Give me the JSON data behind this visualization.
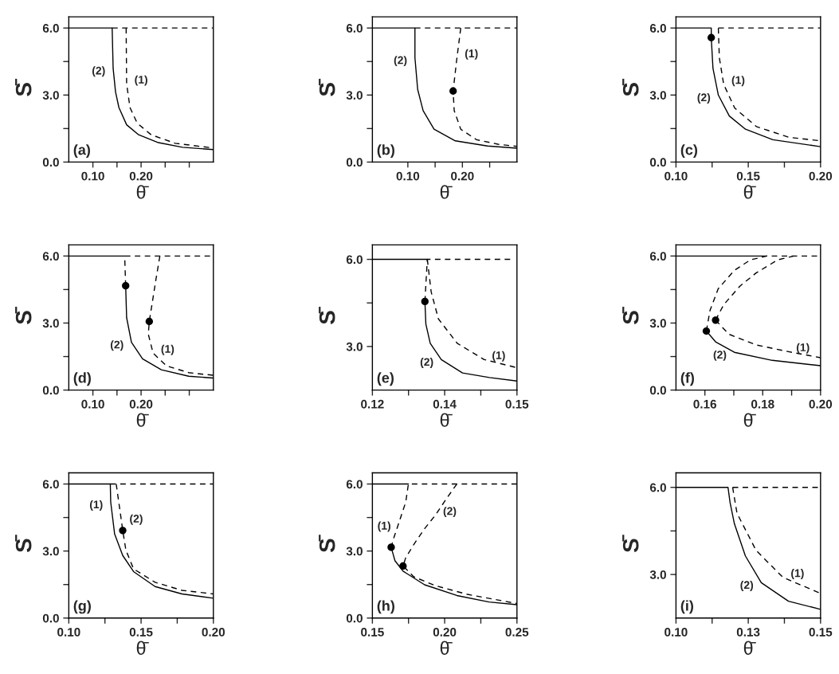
{
  "chart_data": [
    {
      "type": "line",
      "xlabel": "θ̄",
      "ylabel": "S̄",
      "xlim": [
        0.05,
        0.35
      ],
      "ylim": [
        0,
        6.5
      ],
      "xticks": [
        {
          "value": 0.1,
          "label": "0.10"
        },
        {
          "value": 0.15,
          "label": null
        },
        {
          "value": 0.2,
          "label": "0.20"
        },
        {
          "value": 0.25,
          "label": null
        },
        {
          "value": 0.3,
          "label": null
        }
      ],
      "yticks": [
        {
          "value": 0,
          "label": "0.0"
        },
        {
          "value": 1.5,
          "label": null
        },
        {
          "value": 3,
          "label": "3.0"
        },
        {
          "value": 4.5,
          "label": null
        },
        {
          "value": 6,
          "label": "6.0"
        }
      ],
      "series": [
        {
          "color": "#000000",
          "line_style": "solid",
          "x": [
            0.05,
            0.14,
            0.142,
            0.147,
            0.154,
            0.17,
            0.195,
            0.236,
            0.286,
            0.35
          ],
          "values": [
            6,
            6,
            4.2,
            3.14,
            2.44,
            1.67,
            1.22,
            0.87,
            0.66,
            0.56
          ]
        },
        {
          "color": "#000000",
          "line_style": "dashed",
          "x": [
            0.169,
            0.17,
            0.177,
            0.192,
            0.221,
            0.271,
            0.35
          ],
          "values": [
            6,
            3.5,
            2.44,
            1.74,
            1.22,
            0.84,
            0.63
          ]
        },
        {
          "color": "#000000",
          "line_style": "dashed",
          "x": [
            0.14,
            0.35
          ],
          "values": [
            6,
            6
          ]
        }
      ],
      "annotations": [
        "(a)",
        {
          "text": "(2)",
          "x": 0.142,
          "y": 4.2
        },
        {
          "text": "(1)",
          "x": 0.17,
          "y": 3.5
        }
      ]
    },
    {
      "type": "line",
      "xlabel": "θ̄",
      "ylabel": "S̄",
      "xlim": [
        0.035,
        0.3
      ],
      "ylim": [
        0,
        6.5
      ],
      "xticks": [
        {
          "value": 0.1,
          "label": "0.10"
        },
        {
          "value": 0.15,
          "label": null
        },
        {
          "value": 0.2,
          "label": "0.20"
        },
        {
          "value": 0.25,
          "label": null
        }
      ],
      "yticks": [
        {
          "value": 0,
          "label": "0.0"
        },
        {
          "value": 1.5,
          "label": null
        },
        {
          "value": 3,
          "label": "3.0"
        },
        {
          "value": 4.5,
          "label": null
        },
        {
          "value": 6,
          "label": "6.0"
        }
      ],
      "series": [
        {
          "color": "#000000",
          "line_style": "solid",
          "x": [
            0.035,
            0.113,
            0.113,
            0.118,
            0.128,
            0.148,
            0.187,
            0.246,
            0.3
          ],
          "values": [
            6,
            6,
            4.67,
            3.25,
            2.3,
            1.47,
            0.95,
            0.72,
            0.62
          ]
        },
        {
          "color": "#000000",
          "line_style": "dashed",
          "x": [
            0.197,
            0.19,
            0.183,
            0.185,
            0.197,
            0.226,
            0.265,
            0.3
          ],
          "values": [
            6,
            4.67,
            3.18,
            2.3,
            1.47,
            1.0,
            0.8,
            0.7
          ]
        },
        {
          "color": "#000000",
          "line_style": "dashed",
          "x": [
            0.113,
            0.3
          ],
          "values": [
            6,
            6
          ]
        },
        {
          "type": "scatter",
          "marker": "circle",
          "color": "#000000",
          "x": [
            0.183
          ],
          "values": [
            3.18
          ]
        }
      ],
      "annotations": [
        "(b)",
        {
          "text": "(2)",
          "x": 0.113,
          "y": 4.67
        },
        {
          "text": "(1)",
          "x": 0.19,
          "y": 4.67
        }
      ]
    },
    {
      "type": "line",
      "xlabel": "θ̄",
      "ylabel": "S̄",
      "xlim": [
        0.1,
        0.2
      ],
      "ylim": [
        0,
        6.5
      ],
      "xticks": [
        {
          "value": 0.1,
          "label": "0.10"
        },
        {
          "value": 0.125,
          "label": null
        },
        {
          "value": 0.15,
          "label": "0.15"
        },
        {
          "value": 0.175,
          "label": null
        },
        {
          "value": 0.2,
          "label": "0.20"
        }
      ],
      "yticks": [
        {
          "value": 0,
          "label": "0.0"
        },
        {
          "value": 1.5,
          "label": null
        },
        {
          "value": 3,
          "label": "3.0"
        },
        {
          "value": 4.5,
          "label": null
        },
        {
          "value": 6,
          "label": "6.0"
        }
      ],
      "series": [
        {
          "color": "#000000",
          "line_style": "solid",
          "x": [
            0.1,
            0.1244,
            0.1244,
            0.1256,
            0.1293,
            0.1369,
            0.1481,
            0.167,
            0.2
          ],
          "values": [
            6,
            6,
            5.57,
            4.19,
            3.0,
            2.06,
            1.47,
            1.0,
            0.69
          ]
        },
        {
          "color": "#000000",
          "line_style": "dashed",
          "x": [
            0.1293,
            0.13,
            0.133,
            0.1406,
            0.1556,
            0.178,
            0.2
          ],
          "values": [
            6,
            4.67,
            3.48,
            2.42,
            1.59,
            1.11,
            0.95
          ]
        },
        {
          "color": "#000000",
          "line_style": "dashed",
          "x": [
            0.1293,
            0.2
          ],
          "values": [
            6,
            6
          ]
        },
        {
          "type": "scatter",
          "marker": "circle",
          "color": "#000000",
          "x": [
            0.1244
          ],
          "values": [
            5.57
          ]
        }
      ],
      "annotations": [
        "(c)",
        {
          "text": "(2)",
          "x": 0.1293,
          "y": 3.0
        },
        {
          "text": "(1)",
          "x": 0.133,
          "y": 3.48
        }
      ]
    },
    {
      "type": "line",
      "xlabel": "θ̄",
      "ylabel": "S̄",
      "xlim": [
        0.05,
        0.35
      ],
      "ylim": [
        0,
        6.5
      ],
      "xticks": [
        {
          "value": 0.1,
          "label": "0.10"
        },
        {
          "value": 0.15,
          "label": null
        },
        {
          "value": 0.2,
          "label": "0.20"
        },
        {
          "value": 0.25,
          "label": null
        },
        {
          "value": 0.3,
          "label": null
        }
      ],
      "yticks": [
        {
          "value": 0,
          "label": "0.0"
        },
        {
          "value": 1.5,
          "label": null
        },
        {
          "value": 3,
          "label": "3.0"
        },
        {
          "value": 4.5,
          "label": null
        },
        {
          "value": 6,
          "label": "6.0"
        }
      ],
      "series": [
        {
          "color": "#000000",
          "line_style": "solid",
          "x": [
            0.05,
            0.166
          ],
          "values": [
            6,
            6
          ]
        },
        {
          "color": "#000000",
          "line_style": "solid",
          "x": [
            0.168,
            0.17,
            0.18,
            0.203,
            0.242,
            0.299,
            0.35
          ],
          "values": [
            4.67,
            3.24,
            2.14,
            1.4,
            0.91,
            0.62,
            0.54
          ]
        },
        {
          "color": "#000000",
          "line_style": "dashed",
          "x": [
            0.168,
            0.166,
            0.345
          ],
          "values": [
            4.67,
            6,
            6
          ]
        },
        {
          "color": "#000000",
          "line_style": "dashed",
          "x": [
            0.239,
            0.231,
            0.217,
            0.215,
            0.225,
            0.253,
            0.299,
            0.35
          ],
          "values": [
            6,
            4.97,
            3.07,
            2.5,
            1.65,
            1.08,
            0.78,
            0.66
          ]
        },
        {
          "type": "scatter",
          "marker": "circle",
          "color": "#000000",
          "x": [
            0.168,
            0.217
          ],
          "values": [
            4.67,
            3.07
          ]
        }
      ],
      "annotations": [
        "(d)",
        {
          "text": "(2)",
          "x": 0.18,
          "y": 2.14
        },
        {
          "text": "(1)",
          "x": 0.225,
          "y": 1.65
        }
      ]
    },
    {
      "type": "line",
      "xlabel": "θ̄",
      "ylabel": "S̄",
      "xlim": [
        0.12,
        0.15
      ],
      "ylim": [
        1.5,
        6.5
      ],
      "xticks": [
        {
          "value": 0.12,
          "label": "0.12"
        },
        {
          "value": 0.1275,
          "label": null
        },
        {
          "value": 0.135,
          "label": "0.14"
        },
        {
          "value": 0.1425,
          "label": null
        },
        {
          "value": 0.15,
          "label": "0.15"
        }
      ],
      "yticks": [
        {
          "value": 3,
          "label": "3.0"
        },
        {
          "value": 4.5,
          "label": null
        },
        {
          "value": 6,
          "label": "6.0"
        }
      ],
      "series": [
        {
          "color": "#000000",
          "line_style": "solid",
          "x": [
            0.12,
            0.1314
          ],
          "values": [
            6,
            6
          ]
        },
        {
          "color": "#000000",
          "line_style": "solid",
          "x": [
            0.1309,
            0.1311,
            0.132,
            0.1343,
            0.1387,
            0.1443,
            0.15
          ],
          "values": [
            4.55,
            3.77,
            3.11,
            2.55,
            2.09,
            1.93,
            1.81
          ]
        },
        {
          "color": "#000000",
          "line_style": "dashed",
          "x": [
            0.1309,
            0.1314,
            0.1495
          ],
          "values": [
            4.55,
            6,
            6
          ]
        },
        {
          "color": "#000000",
          "line_style": "dashed",
          "x": [
            0.1314,
            0.1322,
            0.1337,
            0.1376,
            0.1432,
            0.15
          ],
          "values": [
            6,
            4.88,
            3.95,
            3.11,
            2.55,
            2.27
          ]
        },
        {
          "type": "scatter",
          "marker": "circle",
          "color": "#000000",
          "x": [
            0.1309
          ],
          "values": [
            4.55
          ]
        }
      ],
      "annotations": [
        "(e)",
        {
          "text": "(2)",
          "x": 0.1343,
          "y": 2.55
        },
        {
          "text": "(1)",
          "x": 0.1432,
          "y": 2.55
        }
      ]
    },
    {
      "type": "line",
      "xlabel": "θ̄",
      "ylabel": "S̄",
      "xlim": [
        0.15,
        0.2
      ],
      "ylim": [
        0,
        6.5
      ],
      "xticks": [
        {
          "value": 0.16,
          "label": "0.16"
        },
        {
          "value": 0.17,
          "label": null
        },
        {
          "value": 0.18,
          "label": "0.18"
        },
        {
          "value": 0.19,
          "label": null
        },
        {
          "value": 0.2,
          "label": "0.20"
        }
      ],
      "yticks": [
        {
          "value": 0,
          "label": "0.0"
        },
        {
          "value": 1.5,
          "label": null
        },
        {
          "value": 3,
          "label": "3.0"
        },
        {
          "value": 4.5,
          "label": null
        },
        {
          "value": 6,
          "label": "6.0"
        }
      ],
      "series": [
        {
          "color": "#000000",
          "line_style": "solid",
          "x": [
            0.15,
            0.1814
          ],
          "values": [
            6,
            6
          ]
        },
        {
          "color": "#000000",
          "line_style": "solid",
          "x": [
            0.1605,
            0.1637,
            0.1702,
            0.1833,
            0.2
          ],
          "values": [
            2.64,
            2.16,
            1.69,
            1.33,
            1.09
          ]
        },
        {
          "color": "#000000",
          "line_style": "dashed",
          "x": [
            0.1637,
            0.1683,
            0.1777,
            0.1889,
            0.2
          ],
          "values": [
            3.13,
            2.5,
            2.02,
            1.72,
            1.45
          ]
        },
        {
          "color": "#000000",
          "line_style": "dashed",
          "x": [
            0.1605,
            0.1618,
            0.1646,
            0.1702,
            0.1758,
            0.1814,
            0.2
          ],
          "values": [
            2.64,
            3.58,
            4.53,
            5.36,
            5.83,
            6,
            6
          ]
        },
        {
          "color": "#000000",
          "line_style": "dashed",
          "x": [
            0.1637,
            0.1665,
            0.1721,
            0.1777,
            0.1852,
            0.1908
          ],
          "values": [
            3.13,
            3.82,
            4.65,
            5.24,
            5.83,
            6
          ]
        },
        {
          "type": "scatter",
          "marker": "circle",
          "color": "#000000",
          "x": [
            0.1605,
            0.1637
          ],
          "values": [
            2.64,
            3.13
          ]
        }
      ],
      "annotations": [
        "(f)",
        {
          "text": "(1)",
          "x": 0.1889,
          "y": 1.72
        },
        {
          "text": "(2)",
          "x": 0.1702,
          "y": 1.69
        }
      ]
    },
    {
      "type": "line",
      "xlabel": "θ̄",
      "ylabel": "S̄",
      "xlim": [
        0.1,
        0.2
      ],
      "ylim": [
        0,
        6.5
      ],
      "xticks": [
        {
          "value": 0.1,
          "label": "0.10"
        },
        {
          "value": 0.125,
          "label": null
        },
        {
          "value": 0.15,
          "label": "0.15"
        },
        {
          "value": 0.175,
          "label": null
        },
        {
          "value": 0.2,
          "label": "0.20"
        }
      ],
      "yticks": [
        {
          "value": 0,
          "label": "0.0"
        },
        {
          "value": 1.5,
          "label": null
        },
        {
          "value": 3,
          "label": "3.0"
        },
        {
          "value": 4.5,
          "label": null
        },
        {
          "value": 6,
          "label": "6.0"
        }
      ],
      "series": [
        {
          "color": "#000000",
          "line_style": "solid",
          "x": [
            0.1,
            0.1287,
            0.129,
            0.1317,
            0.1373,
            0.1448,
            0.1597,
            0.1783,
            0.2
          ],
          "values": [
            6,
            6,
            5.19,
            3.76,
            2.8,
            2.08,
            1.41,
            1.08,
            0.89
          ]
        },
        {
          "color": "#000000",
          "line_style": "dashed",
          "x": [
            0.1328,
            0.1366,
            0.1373,
            0.1395,
            0.1448,
            0.1597,
            0.1783,
            0.2
          ],
          "values": [
            6,
            4.26,
            3.92,
            3.04,
            2.2,
            1.6,
            1.24,
            1.08
          ]
        },
        {
          "color": "#000000",
          "line_style": "dashed",
          "x": [
            0.1287,
            0.2
          ],
          "values": [
            6,
            6
          ]
        },
        {
          "type": "scatter",
          "marker": "circle",
          "color": "#000000",
          "x": [
            0.1373
          ],
          "values": [
            3.92
          ]
        }
      ],
      "annotations": [
        "(g)",
        {
          "text": "(1)",
          "x": 0.129,
          "y": 5.19
        },
        {
          "text": "(2)",
          "x": 0.1366,
          "y": 4.26
        }
      ]
    },
    {
      "type": "line",
      "xlabel": "θ̄",
      "ylabel": "S̄",
      "xlim": [
        0.15,
        0.25
      ],
      "ylim": [
        0,
        6.5
      ],
      "xticks": [
        {
          "value": 0.15,
          "label": "0.15"
        },
        {
          "value": 0.175,
          "label": null
        },
        {
          "value": 0.2,
          "label": "0.20"
        },
        {
          "value": 0.225,
          "label": null
        },
        {
          "value": 0.25,
          "label": "0.25"
        }
      ],
      "yticks": [
        {
          "value": 0,
          "label": "0.0"
        },
        {
          "value": 1.5,
          "label": null
        },
        {
          "value": 3,
          "label": "3.0"
        },
        {
          "value": 4.5,
          "label": null
        },
        {
          "value": 6,
          "label": "6.0"
        }
      ],
      "series": [
        {
          "color": "#000000",
          "line_style": "solid",
          "x": [
            0.15,
            0.1749
          ],
          "values": [
            6,
            6
          ]
        },
        {
          "color": "#000000",
          "line_style": "solid",
          "x": [
            0.163,
            0.1656,
            0.1712,
            0.1861,
            0.2084,
            0.2307,
            0.25
          ],
          "values": [
            3.17,
            2.57,
            2.1,
            1.49,
            1.01,
            0.72,
            0.6
          ]
        },
        {
          "color": "#000000",
          "line_style": "dashed",
          "x": [
            0.25,
            0.1749,
            0.1731,
            0.1682,
            0.1645,
            0.163
          ],
          "values": [
            6,
            6,
            5.2,
            4.24,
            3.53,
            3.17
          ]
        },
        {
          "color": "#000000",
          "line_style": "dashed",
          "x": [
            0.2084,
            0.201,
            0.1935,
            0.1861,
            0.1786,
            0.173,
            0.1712,
            0.1786,
            0.1935,
            0.2158,
            0.25
          ],
          "values": [
            6,
            5.32,
            4.6,
            4.0,
            3.29,
            2.69,
            2.33,
            1.85,
            1.45,
            1.06,
            0.65
          ]
        },
        {
          "type": "scatter",
          "marker": "circle",
          "color": "#000000",
          "x": [
            0.163,
            0.1712
          ],
          "values": [
            3.17,
            2.33
          ]
        }
      ],
      "annotations": [
        "(h)",
        {
          "text": "(1)",
          "x": 0.1682,
          "y": 4.24
        },
        {
          "text": "(2)",
          "x": 0.1935,
          "y": 4.6
        }
      ]
    },
    {
      "type": "line",
      "xlabel": "θ̄",
      "ylabel": "S̄",
      "xlim": [
        0.1,
        0.15
      ],
      "ylim": [
        1.5,
        6.5
      ],
      "xticks": [
        {
          "value": 0.1,
          "label": "0.10"
        },
        {
          "value": 0.1125,
          "label": null
        },
        {
          "value": 0.125,
          "label": "0.13"
        },
        {
          "value": 0.1375,
          "label": null
        },
        {
          "value": 0.15,
          "label": "0.15"
        }
      ],
      "yticks": [
        {
          "value": 3,
          "label": "3.0"
        },
        {
          "value": 4.5,
          "label": null
        },
        {
          "value": 6,
          "label": "6.0"
        }
      ],
      "series": [
        {
          "color": "#000000",
          "line_style": "solid",
          "x": [
            0.1,
            0.118,
            0.1187,
            0.1202,
            0.124,
            0.1295,
            0.1389,
            0.15
          ],
          "values": [
            6,
            6,
            5.48,
            4.75,
            3.64,
            2.72,
            2.08,
            1.8
          ]
        },
        {
          "color": "#000000",
          "line_style": "dashed",
          "x": [
            0.1196,
            0.1211,
            0.1277,
            0.137,
            0.15
          ],
          "values": [
            6,
            5.11,
            3.83,
            2.9,
            2.35
          ]
        },
        {
          "color": "#000000",
          "line_style": "dashed",
          "x": [
            0.1196,
            0.15
          ],
          "values": [
            6,
            6
          ]
        }
      ],
      "annotations": [
        "(i)",
        {
          "text": "(2)",
          "x": 0.1295,
          "y": 2.72
        },
        {
          "text": "(1)",
          "x": 0.137,
          "y": 2.9
        }
      ]
    }
  ]
}
